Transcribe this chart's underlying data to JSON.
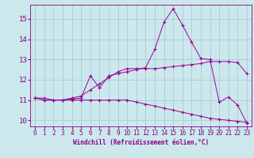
{
  "xlabel": "Windchill (Refroidissement éolien,°C)",
  "background_color": "#cce8ec",
  "line_color": "#990099",
  "xlim": [
    -0.5,
    23.5
  ],
  "ylim": [
    9.7,
    15.7
  ],
  "yticks": [
    10,
    11,
    12,
    13,
    14,
    15
  ],
  "xticks": [
    0,
    1,
    2,
    3,
    4,
    5,
    6,
    7,
    8,
    9,
    10,
    11,
    12,
    13,
    14,
    15,
    16,
    17,
    18,
    19,
    20,
    21,
    22,
    23
  ],
  "series": [
    [
      11.1,
      11.1,
      11.0,
      11.0,
      11.05,
      11.1,
      12.2,
      11.6,
      12.2,
      12.3,
      12.4,
      12.5,
      12.6,
      13.5,
      14.85,
      15.5,
      14.7,
      13.85,
      13.05,
      13.0,
      10.9,
      11.15,
      10.75,
      9.85
    ],
    [
      11.1,
      11.0,
      11.0,
      11.0,
      11.0,
      11.0,
      11.0,
      11.0,
      11.0,
      11.0,
      11.0,
      10.9,
      10.8,
      10.7,
      10.6,
      10.5,
      10.4,
      10.3,
      10.2,
      10.1,
      10.05,
      10.0,
      9.95,
      9.9
    ],
    [
      11.1,
      11.0,
      11.0,
      11.0,
      11.1,
      11.2,
      11.5,
      11.8,
      12.1,
      12.4,
      12.55,
      12.55,
      12.55,
      12.55,
      12.6,
      12.65,
      12.7,
      12.75,
      12.8,
      12.9,
      12.9,
      12.9,
      12.85,
      12.3
    ]
  ],
  "grid_color": "#9fc8cc",
  "font_color": "#880088",
  "font_family": "monospace",
  "tick_fontsize": 5.5,
  "xlabel_fontsize": 5.5
}
